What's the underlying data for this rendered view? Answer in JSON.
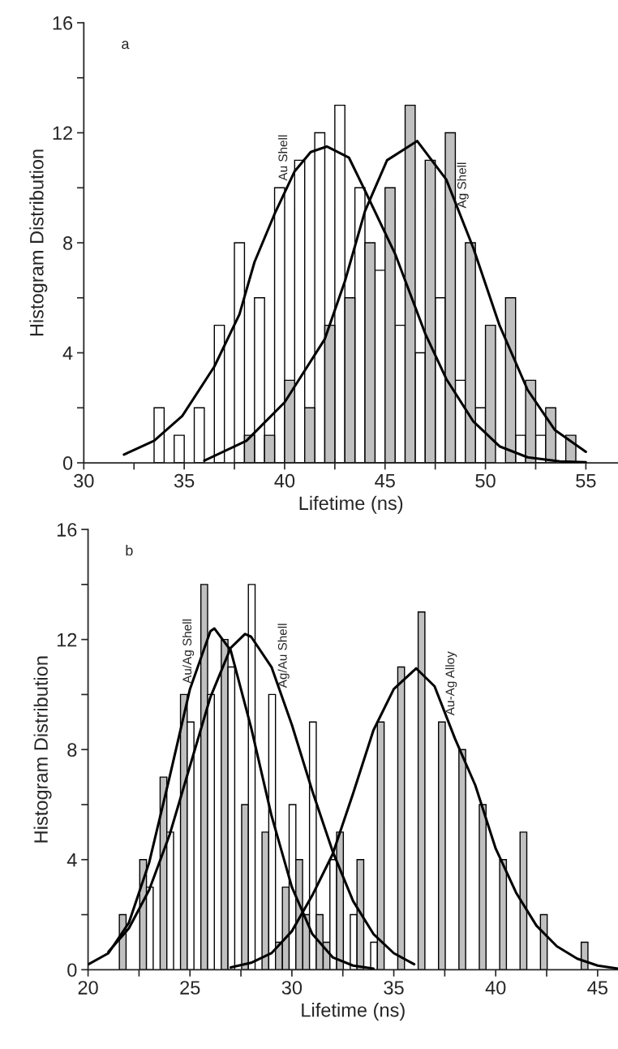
{
  "chart_data": [
    {
      "type": "bar",
      "xlabel": "Lifetime (ns)",
      "ylabel": "Histogram Distribution",
      "xlim": [
        30,
        56.6
      ],
      "xticks": [
        30,
        {
          "value": 32.5,
          "label": null
        },
        35,
        {
          "value": 37.5,
          "label": null
        },
        40,
        {
          "value": 42.5,
          "label": null
        },
        45,
        {
          "value": 47.5,
          "label": null
        },
        50,
        {
          "value": 52.5,
          "label": null
        },
        55
      ],
      "ylim": [
        0,
        16
      ],
      "yticks": [
        0,
        {
          "value": 2,
          "label": null
        },
        4,
        {
          "value": 6,
          "label": null
        },
        8,
        {
          "value": 10,
          "label": null
        },
        12,
        {
          "value": 14,
          "label": null
        },
        16
      ],
      "grid": false,
      "legend": false,
      "annotations": [
        "a"
      ],
      "series": [
        {
          "color": "#ffffff",
          "x": [
            33.75,
            34.75,
            35.75,
            36.75,
            37.75,
            38.75,
            39.75,
            40.75,
            41.75,
            42.75,
            43.75,
            44.75,
            45.75,
            46.75,
            47.75,
            48.75,
            49.75,
            51.75,
            52.75
          ],
          "values": [
            2,
            1,
            2,
            5,
            8,
            6,
            10,
            11,
            12,
            13,
            10,
            7,
            5,
            4,
            6,
            3,
            2,
            1,
            1
          ]
        },
        {
          "color": "#c0c0c0",
          "x": [
            38.25,
            39.25,
            40.25,
            41.25,
            42.25,
            43.25,
            44.25,
            45.25,
            46.25,
            47.25,
            48.25,
            49.25,
            50.25,
            51.25,
            52.25,
            53.25,
            54.25
          ],
          "values": [
            1,
            1,
            3,
            2,
            5,
            6,
            8,
            10,
            13,
            11,
            12,
            8,
            5,
            6,
            3,
            2,
            1
          ]
        },
        {
          "type": "line",
          "name": "Au Shell",
          "color": "#000000",
          "x": [
            32.0,
            33.5,
            34.9,
            36.5,
            37.75,
            38.5,
            39.5,
            40.5,
            41.3,
            42.1,
            43.2,
            44.0,
            45.5,
            47.0,
            48.05,
            49.4,
            50.7,
            52.1,
            53.7,
            55.0
          ],
          "values": [
            0.3,
            0.8,
            1.7,
            3.5,
            5.4,
            7.3,
            9.05,
            10.6,
            11.3,
            11.5,
            11.1,
            9.9,
            7.6,
            4.7,
            3.05,
            1.5,
            0.6,
            0.2,
            0.05,
            0.02
          ]
        },
        {
          "type": "line",
          "name": "Ag Shell",
          "color": "#000000",
          "x": [
            36.0,
            38.1,
            40.0,
            41.0,
            42.0,
            43.0,
            44.0,
            45.1,
            46.6,
            48.05,
            49.4,
            50.7,
            52.1,
            53.45,
            55.0
          ],
          "values": [
            0.08,
            0.8,
            2.2,
            3.35,
            4.5,
            6.6,
            9.15,
            11.0,
            11.7,
            10.3,
            7.8,
            5.0,
            2.65,
            1.2,
            0.4
          ]
        }
      ]
    },
    {
      "type": "bar",
      "xlabel": "Lifetime (ns)",
      "ylabel": "Histogram Distribution",
      "xlim": [
        20,
        46
      ],
      "xticks": [
        20,
        {
          "value": 22.5,
          "label": null
        },
        25,
        {
          "value": 27.5,
          "label": null
        },
        30,
        {
          "value": 32.5,
          "label": null
        },
        35,
        {
          "value": 37.5,
          "label": null
        },
        40,
        {
          "value": 42.5,
          "label": null
        },
        45
      ],
      "ylim": [
        0,
        16
      ],
      "yticks": [
        0,
        {
          "value": 2,
          "label": null
        },
        4,
        {
          "value": 6,
          "label": null
        },
        8,
        {
          "value": 10,
          "label": null
        },
        12,
        {
          "value": 14,
          "label": null
        },
        16
      ],
      "grid": false,
      "legend": false,
      "annotations": [
        "b"
      ],
      "series": [
        {
          "color": "#c0c0c0",
          "x": [
            21.7,
            22.7,
            23.7,
            24.7,
            25.7,
            26.7,
            27.7,
            28.7,
            29.7,
            30.7,
            31.7
          ],
          "values": [
            2,
            4,
            7,
            10,
            14,
            12,
            6,
            5,
            3,
            2,
            1
          ]
        },
        {
          "color": "#ffffff",
          "x": [
            23.03,
            24.03,
            25.03,
            26.03,
            27.03,
            28.03,
            29.03,
            30.03,
            31.03,
            32.03,
            33.03,
            34.03
          ],
          "values": [
            3,
            5,
            9,
            10,
            11,
            14,
            10,
            6,
            9,
            4,
            2,
            1
          ]
        },
        {
          "color": "#c0c0c0",
          "x": [
            29.36,
            30.36,
            31.36,
            32.36,
            33.36,
            34.36,
            35.36,
            36.36,
            37.36,
            38.36,
            39.36,
            40.36,
            41.36,
            42.36,
            44.36
          ],
          "values": [
            1,
            4,
            2,
            5,
            4,
            9,
            11,
            13,
            9,
            8,
            6,
            4,
            5,
            2,
            1
          ]
        },
        {
          "type": "line",
          "name": "Au/Ag Shell",
          "color": "#000000",
          "x": [
            20,
            21,
            22,
            23,
            24,
            25,
            26,
            26.2,
            27,
            28,
            29,
            30,
            31,
            32,
            33,
            34
          ],
          "values": [
            0.19,
            0.6,
            1.7,
            3.9,
            7.0,
            10.2,
            12.3,
            12.4,
            11.6,
            8.8,
            5.6,
            3.0,
            1.3,
            0.45,
            0.15,
            0.04
          ]
        },
        {
          "type": "line",
          "name": "Ag/Au Shell",
          "color": "#000000",
          "x": [
            21,
            22,
            23,
            24,
            25,
            26,
            27,
            27.7,
            28,
            29,
            30,
            31,
            32,
            33,
            34,
            35,
            36
          ],
          "values": [
            0.65,
            1.5,
            2.9,
            4.9,
            7.4,
            9.9,
            11.7,
            12.2,
            12.1,
            11.0,
            8.9,
            6.5,
            4.3,
            2.5,
            1.3,
            0.6,
            0.2
          ]
        },
        {
          "type": "line",
          "name": "Au-Ag Alloy",
          "color": "#000000",
          "x": [
            27,
            28,
            29,
            30,
            31,
            32,
            33,
            34,
            35,
            36.1,
            37,
            38,
            39,
            40,
            41,
            42,
            43,
            44,
            45,
            46
          ],
          "values": [
            0.08,
            0.25,
            0.6,
            1.4,
            2.7,
            4.2,
            6.4,
            8.7,
            10.2,
            10.95,
            10.3,
            8.4,
            6.7,
            4.4,
            2.8,
            1.6,
            0.85,
            0.4,
            0.15,
            0.04
          ]
        }
      ]
    }
  ]
}
